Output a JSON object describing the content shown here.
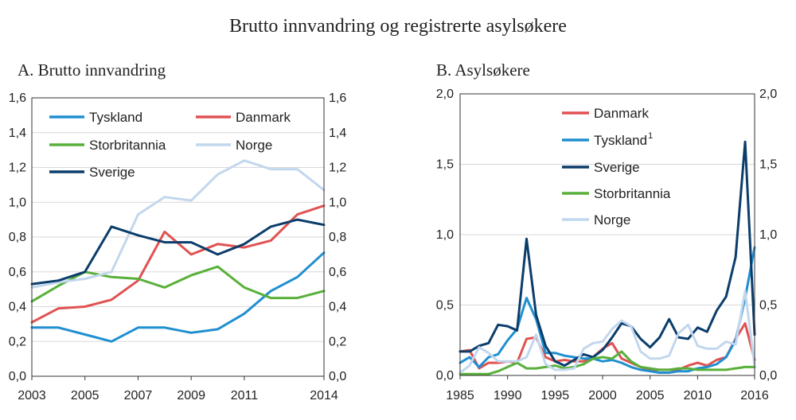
{
  "figure_title": "Brutto innvandring og registrerte asylsøkere",
  "chart_data": [
    {
      "type": "line",
      "panel": "A",
      "title": "A. Brutto innvandring",
      "xlabel": "",
      "ylabel": "",
      "xlim": [
        2003,
        2014
      ],
      "ylim": [
        0,
        1.6
      ],
      "grid": true,
      "legend": "top",
      "x_ticks": [
        "2003",
        "2005",
        "2007",
        "2009",
        "2011",
        "2014"
      ],
      "x_tick_values": [
        2003,
        2005,
        2007,
        2009,
        2011,
        2014
      ],
      "y_ticks": [
        "0,0",
        "0,2",
        "0,4",
        "0,6",
        "0,8",
        "1,0",
        "1,2",
        "1,4",
        "1,6"
      ],
      "y_tick_values": [
        0,
        0.2,
        0.4,
        0.6,
        0.8,
        1.0,
        1.2,
        1.4,
        1.6
      ],
      "x": [
        2003,
        2004,
        2005,
        2006,
        2007,
        2008,
        2009,
        2010,
        2011,
        2012,
        2013,
        2014
      ],
      "series": [
        {
          "name": "Tyskland",
          "color": "#1f8fd0",
          "values": [
            0.28,
            0.28,
            0.24,
            0.2,
            0.28,
            0.28,
            0.25,
            0.27,
            0.36,
            0.49,
            0.57,
            0.71
          ]
        },
        {
          "name": "Danmark",
          "color": "#e05252",
          "values": [
            0.31,
            0.39,
            0.4,
            0.44,
            0.55,
            0.83,
            0.7,
            0.76,
            0.74,
            0.78,
            0.93,
            0.98
          ]
        },
        {
          "name": "Storbritannia",
          "color": "#58b03a",
          "values": [
            0.43,
            0.52,
            0.6,
            0.57,
            0.56,
            0.51,
            0.58,
            0.63,
            0.51,
            0.45,
            0.45,
            0.49
          ]
        },
        {
          "name": "Norge",
          "color": "#c2d7ed",
          "values": [
            0.51,
            0.54,
            0.56,
            0.6,
            0.93,
            1.03,
            1.01,
            1.16,
            1.24,
            1.19,
            1.19,
            1.07
          ]
        },
        {
          "name": "Sverige",
          "color": "#0b3d6b",
          "values": [
            0.53,
            0.55,
            0.6,
            0.86,
            0.81,
            0.77,
            0.77,
            0.7,
            0.76,
            0.86,
            0.9,
            0.87
          ]
        }
      ]
    },
    {
      "type": "line",
      "panel": "B",
      "title": "B. Asylsøkere",
      "xlabel": "",
      "ylabel": "",
      "xlim": [
        1985,
        2016
      ],
      "ylim": [
        0,
        2.0
      ],
      "grid": true,
      "legend": "top",
      "x_ticks": [
        "1985",
        "1990",
        "1995",
        "2000",
        "2005",
        "2010",
        "2016"
      ],
      "x_tick_values": [
        1985,
        1990,
        1995,
        2000,
        2005,
        2010,
        2016
      ],
      "y_ticks": [
        "0,0",
        "0,5",
        "1,0",
        "1,5",
        "2,0"
      ],
      "y_tick_values": [
        0,
        0.5,
        1.0,
        1.5,
        2.0
      ],
      "x": [
        1985,
        1986,
        1987,
        1988,
        1989,
        1990,
        1991,
        1992,
        1993,
        1994,
        1995,
        1996,
        1997,
        1998,
        1999,
        2000,
        2001,
        2002,
        2003,
        2004,
        2005,
        2006,
        2007,
        2008,
        2009,
        2010,
        2011,
        2012,
        2013,
        2014,
        2015,
        2016
      ],
      "series": [
        {
          "name": "Danmark",
          "color": "#e05252",
          "values": [
            0.17,
            0.18,
            0.05,
            0.09,
            0.09,
            0.1,
            0.09,
            0.26,
            0.27,
            0.13,
            0.1,
            0.11,
            0.1,
            0.1,
            0.13,
            0.19,
            0.23,
            0.12,
            0.09,
            0.06,
            0.04,
            0.04,
            0.04,
            0.04,
            0.07,
            0.09,
            0.07,
            0.11,
            0.13,
            0.26,
            0.37,
            0.11
          ]
        },
        {
          "name": "Tyskland",
          "name_superscript": "1",
          "color": "#1f8fd0",
          "values": [
            0.09,
            0.13,
            0.06,
            0.13,
            0.15,
            0.25,
            0.33,
            0.55,
            0.4,
            0.16,
            0.16,
            0.14,
            0.13,
            0.12,
            0.12,
            0.1,
            0.11,
            0.09,
            0.06,
            0.04,
            0.03,
            0.02,
            0.02,
            0.03,
            0.03,
            0.05,
            0.06,
            0.08,
            0.13,
            0.25,
            0.55,
            0.91
          ]
        },
        {
          "name": "Sverige",
          "color": "#0b3d6b",
          "values": [
            0.17,
            0.17,
            0.21,
            0.23,
            0.36,
            0.35,
            0.32,
            0.97,
            0.43,
            0.21,
            0.1,
            0.07,
            0.11,
            0.15,
            0.13,
            0.18,
            0.27,
            0.37,
            0.35,
            0.26,
            0.2,
            0.27,
            0.4,
            0.27,
            0.26,
            0.34,
            0.31,
            0.46,
            0.56,
            0.84,
            1.66,
            0.29
          ]
        },
        {
          "name": "Storbritannia",
          "color": "#58b03a",
          "values": [
            0.01,
            0.01,
            0.01,
            0.01,
            0.03,
            0.06,
            0.09,
            0.05,
            0.05,
            0.06,
            0.07,
            0.05,
            0.06,
            0.08,
            0.12,
            0.13,
            0.12,
            0.17,
            0.1,
            0.06,
            0.05,
            0.04,
            0.04,
            0.05,
            0.05,
            0.04,
            0.04,
            0.04,
            0.04,
            0.05,
            0.06,
            0.06
          ]
        },
        {
          "name": "Norge",
          "color": "#c2d7ed",
          "values": [
            0.02,
            0.07,
            0.2,
            0.16,
            0.1,
            0.1,
            0.1,
            0.13,
            0.29,
            0.08,
            0.04,
            0.04,
            0.05,
            0.19,
            0.23,
            0.24,
            0.33,
            0.39,
            0.35,
            0.17,
            0.12,
            0.12,
            0.14,
            0.3,
            0.36,
            0.21,
            0.19,
            0.19,
            0.24,
            0.22,
            0.6,
            0.07
          ]
        }
      ]
    }
  ]
}
